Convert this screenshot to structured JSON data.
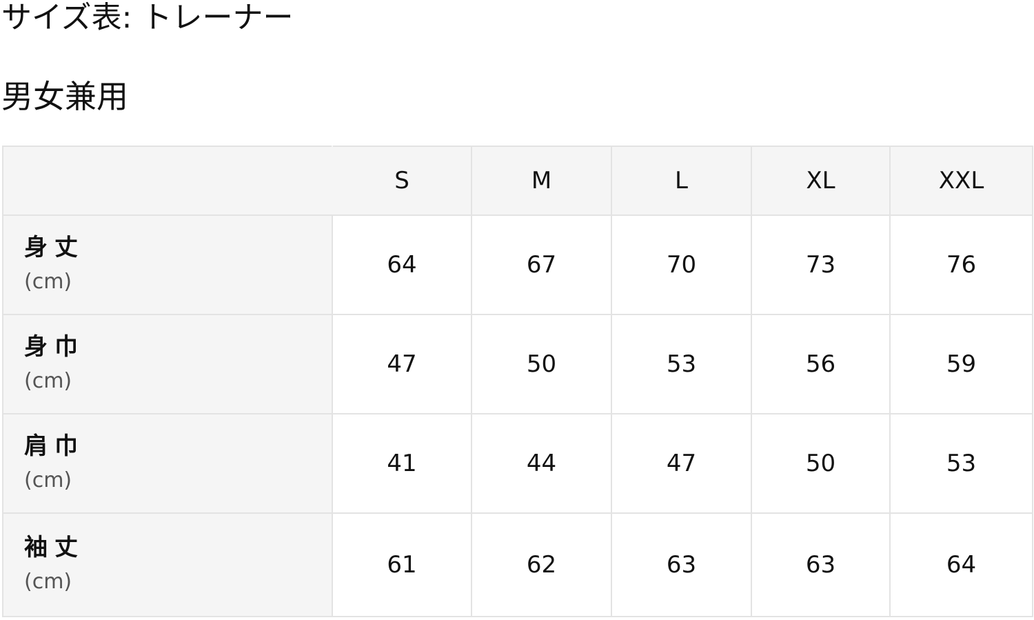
{
  "title": "サイズ表: トレーナー",
  "subtitle": "男女兼用",
  "table": {
    "headers": [
      "",
      "S",
      "M",
      "L",
      "XL",
      "XXL"
    ],
    "rows": [
      {
        "label": "身丈",
        "unit": "(cm)",
        "values": [
          "64",
          "67",
          "70",
          "73",
          "76"
        ]
      },
      {
        "label": "身巾",
        "unit": "(cm)",
        "values": [
          "47",
          "50",
          "53",
          "56",
          "59"
        ]
      },
      {
        "label": "肩巾",
        "unit": "(cm)",
        "values": [
          "41",
          "44",
          "47",
          "50",
          "53"
        ]
      },
      {
        "label": "袖丈",
        "unit": "(cm)",
        "values": [
          "61",
          "62",
          "63",
          "63",
          "64"
        ]
      }
    ]
  }
}
